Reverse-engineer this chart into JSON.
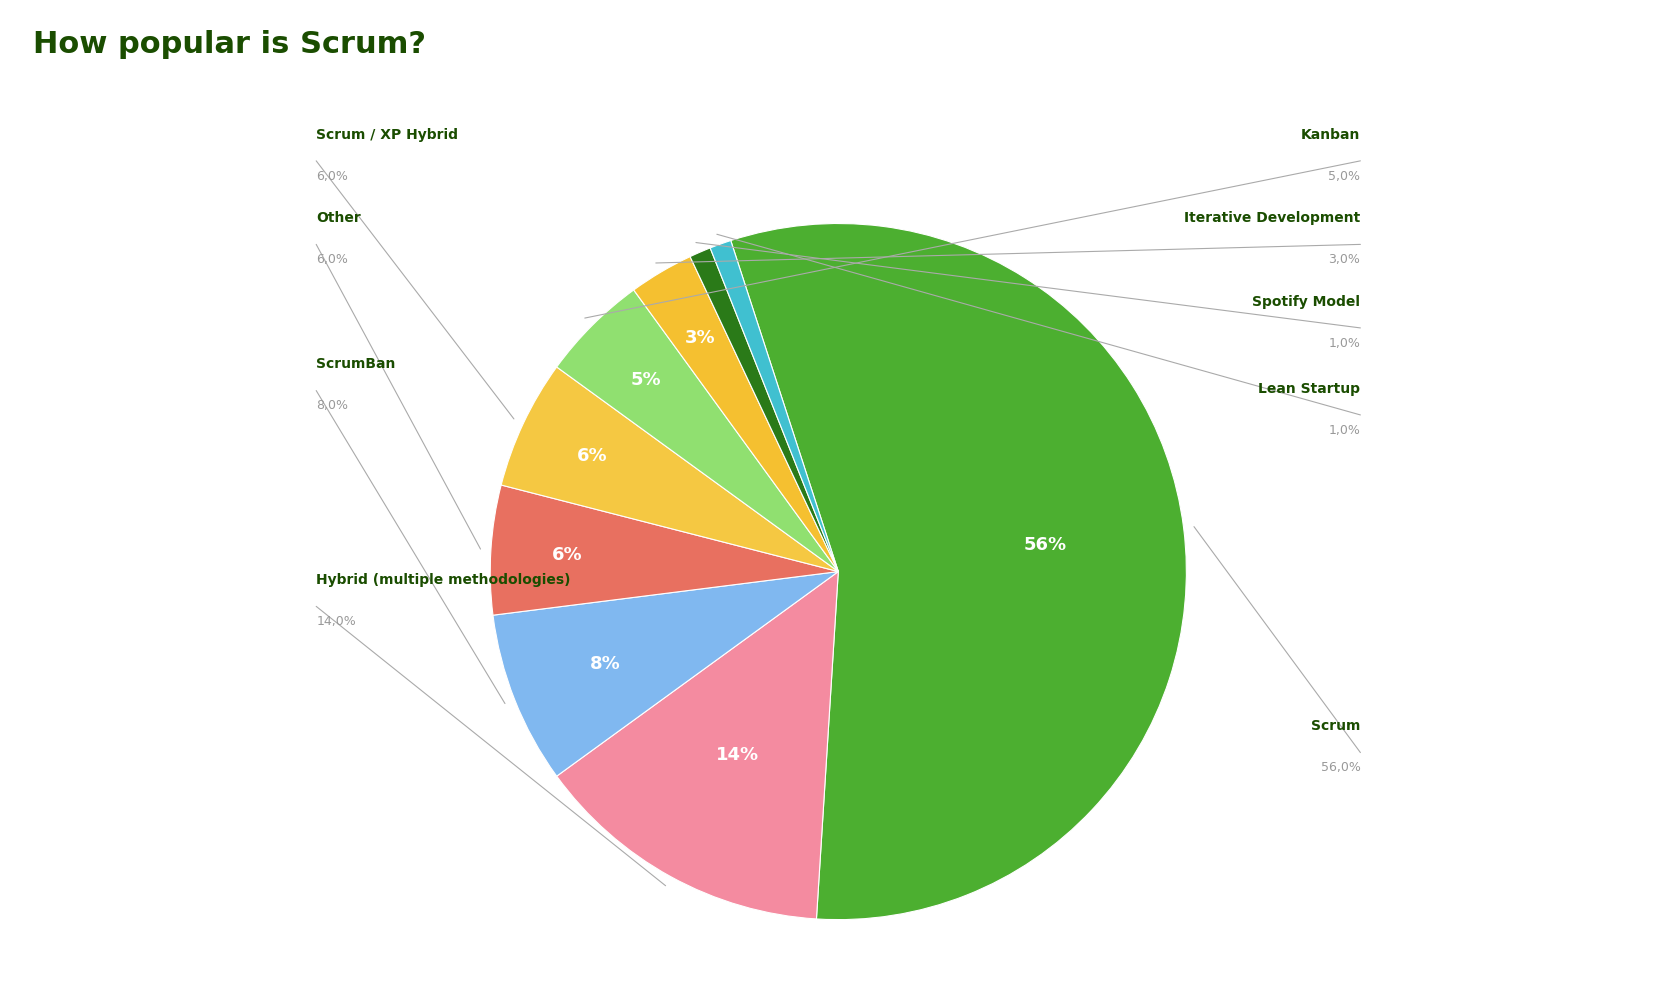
{
  "title": "How popular is Scrum?",
  "title_color": "#1a4d00",
  "title_fontsize": 22,
  "title_fontweight": "bold",
  "slices": [
    {
      "label": "Scrum",
      "value": 56,
      "pct_label": "56%",
      "color": "#4caf30"
    },
    {
      "label": "Hybrid (multiple methodologies)",
      "value": 14,
      "pct_label": "14%",
      "color": "#f48ba0"
    },
    {
      "label": "ScrumBan",
      "value": 8,
      "pct_label": "8%",
      "color": "#80b8f0"
    },
    {
      "label": "Other",
      "value": 6,
      "pct_label": "6%",
      "color": "#e87060"
    },
    {
      "label": "Scrum / XP Hybrid",
      "value": 6,
      "pct_label": "6%",
      "color": "#f5c842"
    },
    {
      "label": "Kanban",
      "value": 5,
      "pct_label": "5%",
      "color": "#90e070"
    },
    {
      "label": "Iterative Development",
      "value": 3,
      "pct_label": "3%",
      "color": "#f5c030"
    },
    {
      "label": "Spotify Model",
      "value": 1,
      "pct_label": "",
      "color": "#2a7a18"
    },
    {
      "label": "Lean Startup",
      "value": 1,
      "pct_label": "",
      "color": "#40c0d0"
    }
  ],
  "pct_labels": [
    "56%",
    "14%",
    "8%",
    "6%",
    "6%",
    "5%",
    "3%",
    "",
    ""
  ],
  "label_color_main": "#1a4d00",
  "label_color_pct": "#999999",
  "background_color": "#ffffff",
  "startangle": 108,
  "left_labels": [
    {
      "name": "Scrum / XP Hybrid",
      "pct": "6,0%",
      "slice_index": 4
    },
    {
      "name": "Other",
      "pct": "6,0%",
      "slice_index": 3
    },
    {
      "name": "ScrumBan",
      "pct": "8,0%",
      "slice_index": 2
    },
    {
      "name": "Hybrid (multiple methodologies)",
      "pct": "14,0%",
      "slice_index": 1
    }
  ],
  "right_labels": [
    {
      "name": "Kanban",
      "pct": "5,0%",
      "slice_index": 5
    },
    {
      "name": "Iterative Development",
      "pct": "3,0%",
      "slice_index": 6
    },
    {
      "name": "Spotify Model",
      "pct": "1,0%",
      "slice_index": 7
    },
    {
      "name": "Lean Startup",
      "pct": "1,0%",
      "slice_index": 8
    },
    {
      "name": "Scrum",
      "pct": "56,0%",
      "slice_index": 0
    }
  ]
}
